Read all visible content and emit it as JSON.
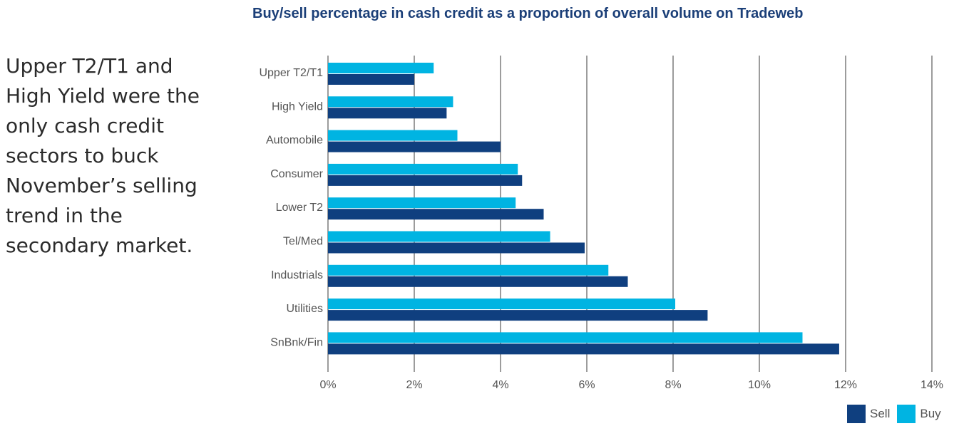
{
  "side_text": "Upper T2/T1 and High Yield were the only cash credit sectors to buck November’s selling trend in the secondary market.",
  "colors": {
    "sell": "#0f3f7f",
    "buy": "#00b4e2",
    "grid": "#3a3a3a",
    "title": "#1b3f78",
    "label": "#555555"
  },
  "chart_data": {
    "type": "bar",
    "orientation": "horizontal",
    "title": "Buy/sell percentage in cash credit as a proportion of overall volume on Tradeweb",
    "xlabel": "",
    "ylabel": "",
    "categories": [
      "Upper T2/T1",
      "High Yield",
      "Automobile",
      "Consumer",
      "Lower T2",
      "Tel/Med",
      "Industrials",
      "Utilities",
      "SnBnk/Fin"
    ],
    "series": [
      {
        "name": "Buy",
        "values": [
          2.45,
          2.9,
          3.0,
          4.4,
          4.35,
          5.15,
          6.5,
          8.05,
          11.0
        ]
      },
      {
        "name": "Sell",
        "values": [
          2.0,
          2.75,
          4.0,
          4.5,
          5.0,
          5.95,
          6.95,
          8.8,
          11.85
        ]
      }
    ],
    "xlim": [
      0,
      14
    ],
    "ticks": [
      "0%",
      "2%",
      "4%",
      "6%",
      "8%",
      "10%",
      "12%",
      "14%"
    ],
    "grid": true,
    "legend_position": "bottom-right",
    "legend": [
      "Sell",
      "Buy"
    ]
  }
}
